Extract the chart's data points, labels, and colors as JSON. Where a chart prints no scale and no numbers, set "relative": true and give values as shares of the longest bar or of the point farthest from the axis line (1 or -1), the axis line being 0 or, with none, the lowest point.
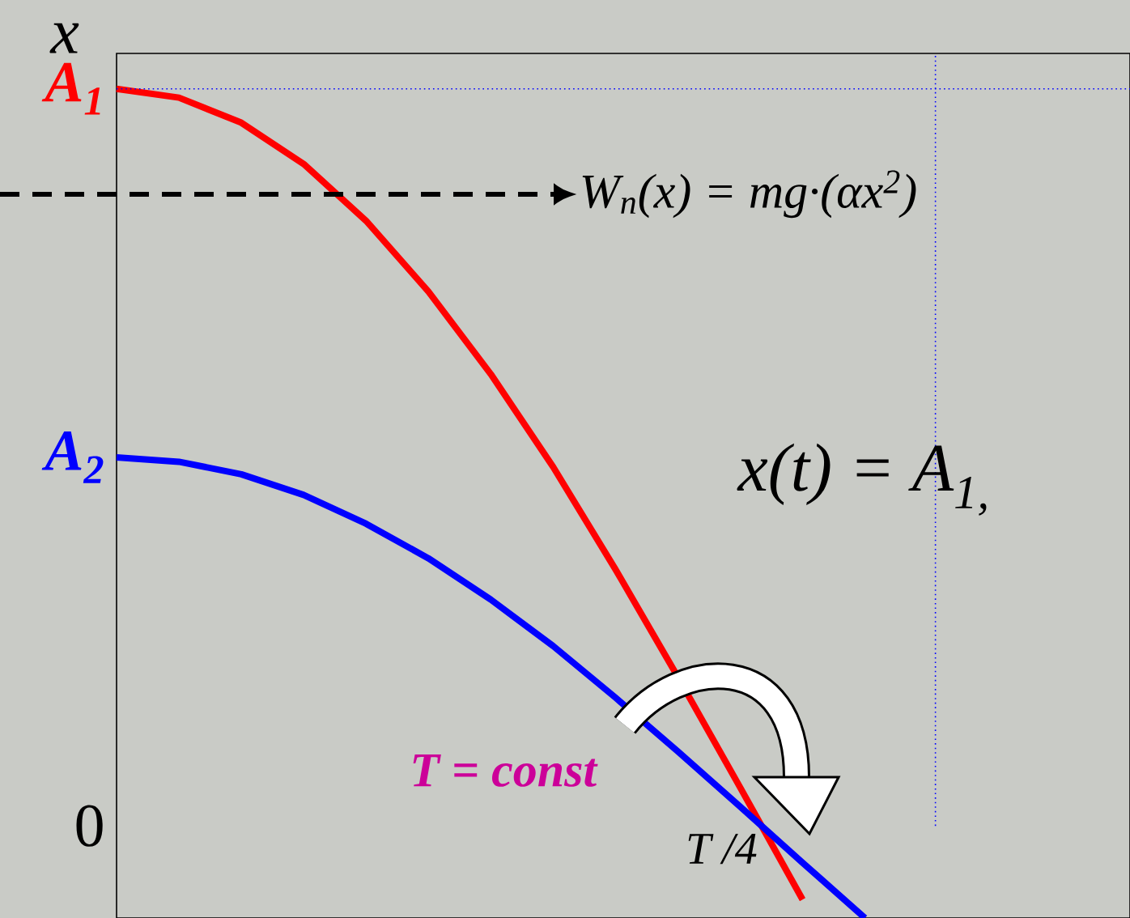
{
  "chart_data": {
    "type": "line",
    "relative": true,
    "ylabel": "x",
    "line_style": "solid",
    "categories": [
      null,
      null,
      null,
      null,
      null,
      null,
      null,
      null,
      null,
      null,
      null,
      null,
      null,
      null
    ],
    "series": [
      {
        "color": "#ff0000",
        "values": [
          1,
          0.988,
          0.954,
          0.898,
          0.821,
          0.725,
          0.613,
          0.487,
          0.348,
          0.202,
          0.052,
          -0.1,
          null,
          null
        ]
      },
      {
        "color": "#0000ff",
        "values": [
          0.5,
          0.494,
          0.477,
          0.449,
          0.41,
          0.363,
          0.307,
          0.244,
          0.174,
          0.101,
          0.026,
          -0.05,
          -0.125,
          null
        ]
      }
    ],
    "ref_lines": [
      {
        "axis": "y",
        "value": 1,
        "color": "#0000ff",
        "line_style": "dotted"
      }
    ],
    "annotations": [
      "A$_{1}$",
      "A$_{2}$",
      "0",
      "W$_{n}$(x) = mg·(αx$^{2}$)",
      "x(t) = A$_{1,}$",
      "T = const",
      "T /4"
    ]
  }
}
